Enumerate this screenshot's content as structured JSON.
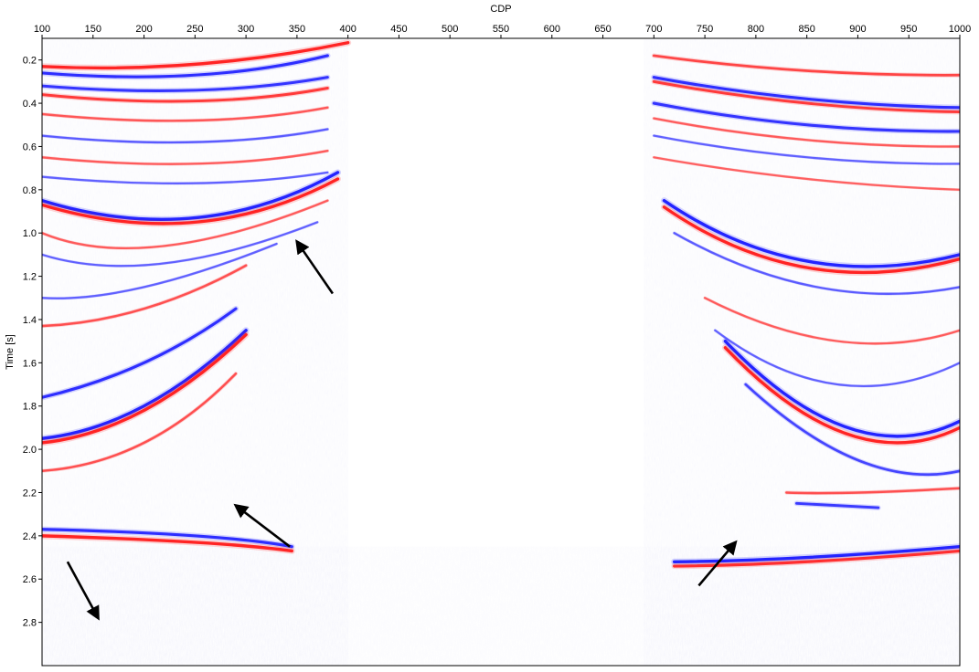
{
  "chart_data": {
    "type": "heatmap",
    "title": "",
    "xlabel": "CDP",
    "ylabel": "Time [s]",
    "x_axis_position": "top",
    "xlim": [
      100,
      1000
    ],
    "ylim": [
      0.1,
      3.0
    ],
    "y_inverted": true,
    "x_ticks": [
      100,
      150,
      200,
      250,
      300,
      350,
      400,
      450,
      500,
      550,
      600,
      650,
      700,
      750,
      800,
      850,
      900,
      950,
      1000
    ],
    "y_ticks": [
      0.2,
      0.4,
      0.6,
      0.8,
      1.0,
      1.2,
      1.4,
      1.6,
      1.8,
      2.0,
      2.2,
      2.4,
      2.6,
      2.8
    ],
    "y_tick_labels": [
      "0.2",
      "0.4",
      "0.6",
      "0.8",
      "1.0",
      "1.2",
      "1.4",
      "1.6",
      "1.8",
      "2.0",
      "2.2",
      "2.4",
      "2.6",
      "2.8"
    ],
    "grid": false,
    "colormap": "seismic (blue-white-red)",
    "colors": {
      "negative": "#1a1aff",
      "positive": "#ff1a1a",
      "zero": "#ffffff"
    },
    "reflectors": [
      {
        "side": "left",
        "cdp": [
          100,
          250,
          400
        ],
        "time": [
          0.23,
          0.22,
          0.12
        ],
        "polarity": "positive",
        "strength": 1.0
      },
      {
        "side": "left",
        "cdp": [
          100,
          250,
          380
        ],
        "time": [
          0.26,
          0.27,
          0.18
        ],
        "polarity": "negative",
        "strength": 0.9
      },
      {
        "side": "left",
        "cdp": [
          100,
          250,
          380
        ],
        "time": [
          0.32,
          0.34,
          0.28
        ],
        "polarity": "negative",
        "strength": 0.85
      },
      {
        "side": "left",
        "cdp": [
          100,
          250,
          380
        ],
        "time": [
          0.36,
          0.39,
          0.33
        ],
        "polarity": "positive",
        "strength": 0.8
      },
      {
        "side": "left",
        "cdp": [
          100,
          250,
          380
        ],
        "time": [
          0.45,
          0.48,
          0.42
        ],
        "polarity": "positive",
        "strength": 0.55
      },
      {
        "side": "left",
        "cdp": [
          100,
          250,
          380
        ],
        "time": [
          0.55,
          0.58,
          0.52
        ],
        "polarity": "negative",
        "strength": 0.5
      },
      {
        "side": "left",
        "cdp": [
          100,
          250,
          380
        ],
        "time": [
          0.65,
          0.68,
          0.62
        ],
        "polarity": "positive",
        "strength": 0.5
      },
      {
        "side": "left",
        "cdp": [
          100,
          250,
          380
        ],
        "time": [
          0.74,
          0.77,
          0.72
        ],
        "polarity": "negative",
        "strength": 0.45
      },
      {
        "side": "left",
        "cdp": [
          100,
          250,
          390
        ],
        "time": [
          0.85,
          0.93,
          0.72
        ],
        "polarity": "negative",
        "strength": 1.0
      },
      {
        "side": "left",
        "cdp": [
          100,
          250,
          390
        ],
        "time": [
          0.87,
          0.95,
          0.75
        ],
        "polarity": "positive",
        "strength": 1.0
      },
      {
        "side": "left",
        "cdp": [
          100,
          220,
          380
        ],
        "time": [
          1.0,
          1.06,
          0.85
        ],
        "polarity": "positive",
        "strength": 0.5
      },
      {
        "side": "left",
        "cdp": [
          100,
          220,
          370
        ],
        "time": [
          1.1,
          1.14,
          0.95
        ],
        "polarity": "negative",
        "strength": 0.45
      },
      {
        "side": "left",
        "cdp": [
          100,
          200,
          330
        ],
        "time": [
          1.3,
          1.25,
          1.05
        ],
        "polarity": "negative",
        "strength": 0.45
      },
      {
        "side": "left",
        "cdp": [
          100,
          200,
          300
        ],
        "time": [
          1.43,
          1.35,
          1.15
        ],
        "polarity": "positive",
        "strength": 0.6
      },
      {
        "side": "left",
        "cdp": [
          100,
          200,
          290
        ],
        "time": [
          1.76,
          1.6,
          1.35
        ],
        "polarity": "negative",
        "strength": 0.9
      },
      {
        "side": "left",
        "cdp": [
          100,
          200,
          300
        ],
        "time": [
          1.95,
          1.8,
          1.45
        ],
        "polarity": "negative",
        "strength": 1.0
      },
      {
        "side": "left",
        "cdp": [
          100,
          200,
          300
        ],
        "time": [
          1.97,
          1.82,
          1.47
        ],
        "polarity": "positive",
        "strength": 1.0
      },
      {
        "side": "left",
        "cdp": [
          100,
          200,
          290
        ],
        "time": [
          2.1,
          1.97,
          1.65
        ],
        "polarity": "positive",
        "strength": 0.6
      },
      {
        "side": "left",
        "cdp": [
          100,
          250,
          345
        ],
        "time": [
          2.37,
          2.4,
          2.45
        ],
        "polarity": "negative",
        "strength": 0.9
      },
      {
        "side": "left",
        "cdp": [
          100,
          250,
          345
        ],
        "time": [
          2.4,
          2.43,
          2.47
        ],
        "polarity": "positive",
        "strength": 1.0
      },
      {
        "side": "right",
        "cdp": [
          700,
          850,
          1000
        ],
        "time": [
          0.18,
          0.25,
          0.27
        ],
        "polarity": "positive",
        "strength": 0.7
      },
      {
        "side": "right",
        "cdp": [
          700,
          850,
          1000
        ],
        "time": [
          0.28,
          0.38,
          0.42
        ],
        "polarity": "negative",
        "strength": 0.9
      },
      {
        "side": "right",
        "cdp": [
          700,
          850,
          1000
        ],
        "time": [
          0.3,
          0.4,
          0.44
        ],
        "polarity": "positive",
        "strength": 0.8
      },
      {
        "side": "right",
        "cdp": [
          700,
          850,
          1000
        ],
        "time": [
          0.4,
          0.5,
          0.53
        ],
        "polarity": "negative",
        "strength": 0.85
      },
      {
        "side": "right",
        "cdp": [
          700,
          850,
          1000
        ],
        "time": [
          0.47,
          0.57,
          0.6
        ],
        "polarity": "positive",
        "strength": 0.5
      },
      {
        "side": "right",
        "cdp": [
          700,
          850,
          1000
        ],
        "time": [
          0.55,
          0.65,
          0.68
        ],
        "polarity": "negative",
        "strength": 0.45
      },
      {
        "side": "right",
        "cdp": [
          700,
          850,
          1000
        ],
        "time": [
          0.65,
          0.75,
          0.8
        ],
        "polarity": "positive",
        "strength": 0.45
      },
      {
        "side": "right",
        "cdp": [
          710,
          850,
          1000
        ],
        "time": [
          0.85,
          1.13,
          1.1
        ],
        "polarity": "negative",
        "strength": 1.0
      },
      {
        "side": "right",
        "cdp": [
          710,
          850,
          1000
        ],
        "time": [
          0.88,
          1.16,
          1.12
        ],
        "polarity": "positive",
        "strength": 1.0
      },
      {
        "side": "right",
        "cdp": [
          720,
          860,
          1000
        ],
        "time": [
          1.0,
          1.25,
          1.25
        ],
        "polarity": "negative",
        "strength": 0.5
      },
      {
        "side": "right",
        "cdp": [
          750,
          880,
          1000
        ],
        "time": [
          1.3,
          1.5,
          1.45
        ],
        "polarity": "positive",
        "strength": 0.5
      },
      {
        "side": "right",
        "cdp": [
          760,
          880,
          1000
        ],
        "time": [
          1.45,
          1.7,
          1.6
        ],
        "polarity": "negative",
        "strength": 0.45
      },
      {
        "side": "right",
        "cdp": [
          770,
          890,
          1000
        ],
        "time": [
          1.5,
          1.9,
          1.87
        ],
        "polarity": "negative",
        "strength": 1.0
      },
      {
        "side": "right",
        "cdp": [
          770,
          890,
          1000
        ],
        "time": [
          1.53,
          1.93,
          1.9
        ],
        "polarity": "positive",
        "strength": 1.0
      },
      {
        "side": "right",
        "cdp": [
          790,
          900,
          1000
        ],
        "time": [
          1.7,
          2.05,
          2.1
        ],
        "polarity": "negative",
        "strength": 0.7
      },
      {
        "side": "right",
        "cdp": [
          830,
          900,
          1000
        ],
        "time": [
          2.2,
          2.2,
          2.18
        ],
        "polarity": "positive",
        "strength": 0.6
      },
      {
        "side": "right",
        "cdp": [
          840,
          880,
          920
        ],
        "time": [
          2.25,
          2.26,
          2.27
        ],
        "polarity": "negative",
        "strength": 0.8
      },
      {
        "side": "right",
        "cdp": [
          720,
          850,
          1000
        ],
        "time": [
          2.52,
          2.5,
          2.45
        ],
        "polarity": "negative",
        "strength": 1.0
      },
      {
        "side": "right",
        "cdp": [
          720,
          850,
          1000
        ],
        "time": [
          2.54,
          2.52,
          2.47
        ],
        "polarity": "positive",
        "strength": 0.9
      }
    ],
    "annotations": [
      {
        "kind": "arrow",
        "from_cdp": 385,
        "from_time": 1.28,
        "to_cdp": 350,
        "to_time": 1.04
      },
      {
        "kind": "arrow",
        "from_cdp": 343,
        "from_time": 2.45,
        "to_cdp": 290,
        "to_time": 2.26
      },
      {
        "kind": "arrow",
        "from_cdp": 125,
        "from_time": 2.52,
        "to_cdp": 155,
        "to_time": 2.78
      },
      {
        "kind": "arrow",
        "from_cdp": 744,
        "from_time": 2.63,
        "to_cdp": 780,
        "to_time": 2.43
      }
    ]
  }
}
